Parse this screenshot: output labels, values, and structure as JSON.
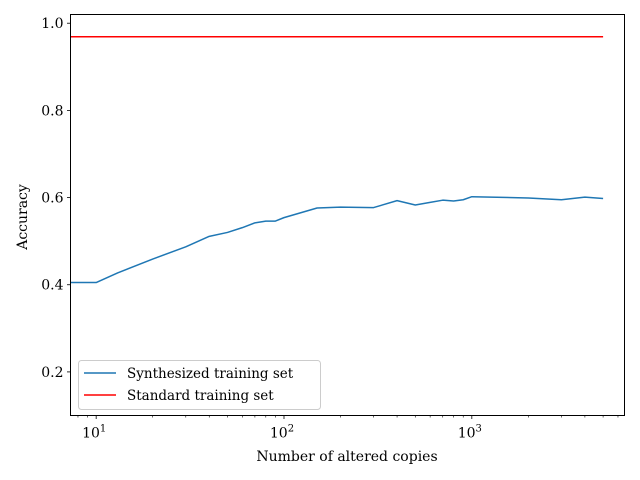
{
  "chart_data": {
    "type": "line",
    "title": "",
    "xlabel": "Number of altered copies",
    "ylabel": "Accuracy",
    "xscale": "log",
    "xlim": [
      7.3,
      6500
    ],
    "ylim": [
      0.1,
      1.02
    ],
    "grid": false,
    "legend_position": "lower-left",
    "x_ticks": [
      {
        "value": 10,
        "mantissa": "10",
        "exponent": "1"
      },
      {
        "value": 100,
        "mantissa": "10",
        "exponent": "2"
      },
      {
        "value": 1000,
        "mantissa": "10",
        "exponent": "3"
      }
    ],
    "y_ticks": [
      {
        "value": 0.2,
        "label": "0.2"
      },
      {
        "value": 0.4,
        "label": "0.4"
      },
      {
        "value": 0.6,
        "label": "0.6"
      },
      {
        "value": 0.8,
        "label": "0.8"
      },
      {
        "value": 1.0,
        "label": "1.0"
      }
    ],
    "series": [
      {
        "name": "Synthesized training set",
        "color": "#1f77b4",
        "x": [
          7.3,
          10,
          13,
          20,
          30,
          40,
          50,
          60,
          70,
          80,
          90,
          100,
          150,
          200,
          300,
          400,
          500,
          600,
          700,
          800,
          900,
          1000,
          2000,
          3000,
          4000,
          5000
        ],
        "y": [
          0.405,
          0.405,
          0.427,
          0.459,
          0.487,
          0.511,
          0.52,
          0.531,
          0.542,
          0.546,
          0.546,
          0.554,
          0.576,
          0.578,
          0.577,
          0.593,
          0.583,
          0.589,
          0.594,
          0.592,
          0.595,
          0.602,
          0.599,
          0.595,
          0.601,
          0.598
        ]
      },
      {
        "name": "Standard training set",
        "color": "#ff0000",
        "x": [
          7.3,
          5000
        ],
        "y": [
          0.969,
          0.969
        ]
      }
    ]
  }
}
